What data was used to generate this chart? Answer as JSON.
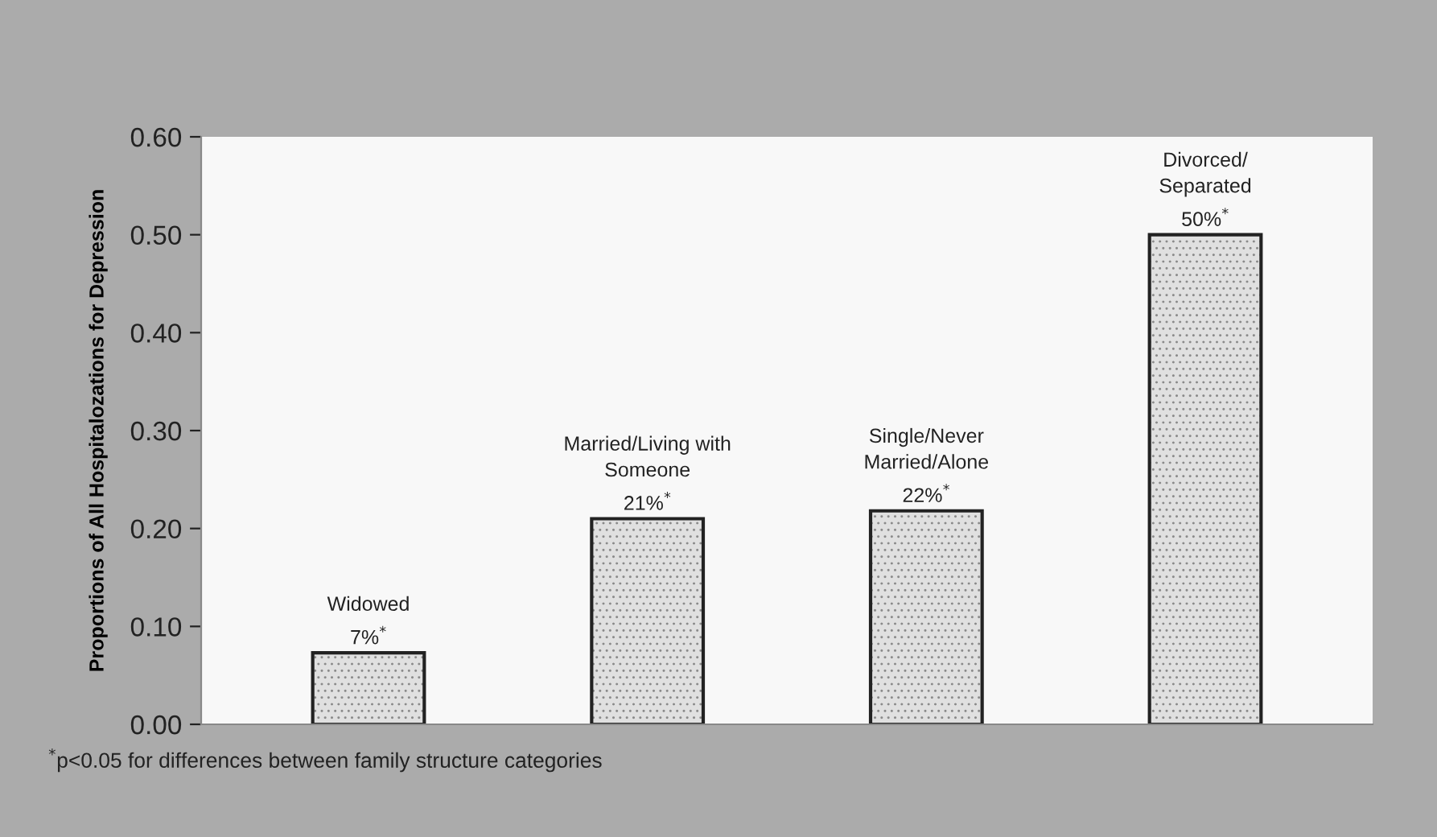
{
  "chart_data": {
    "type": "bar",
    "ylabel": "Proportions of All Hospitalozations for Depression",
    "categories": [
      "Widowed",
      "Married/Living with\nSomeone",
      "Single/Never\nMarried/Alone",
      "Divorced/\nSeparated"
    ],
    "values": [
      0.073,
      0.21,
      0.218,
      0.5
    ],
    "value_labels": [
      "7%$^{*}$",
      "21%$^{*}$",
      "22%$^{*}$",
      "50%$^{*}$"
    ],
    "color": "#e0e0e0",
    "ylim": [
      0,
      0.6
    ],
    "yticks": [
      {
        "value": 0,
        "label": "0.00"
      },
      {
        "value": 0.1,
        "label": "0.10"
      },
      {
        "value": 0.2,
        "label": "0.20"
      },
      {
        "value": 0.3,
        "label": "0.30"
      },
      {
        "value": 0.4,
        "label": "0.40"
      },
      {
        "value": 0.5,
        "label": "0.50"
      },
      {
        "value": 0.6,
        "label": "0.60"
      }
    ],
    "grid": false,
    "annotations": [
      "$^{*}$p<0.05 for differences between family structure categories"
    ]
  }
}
